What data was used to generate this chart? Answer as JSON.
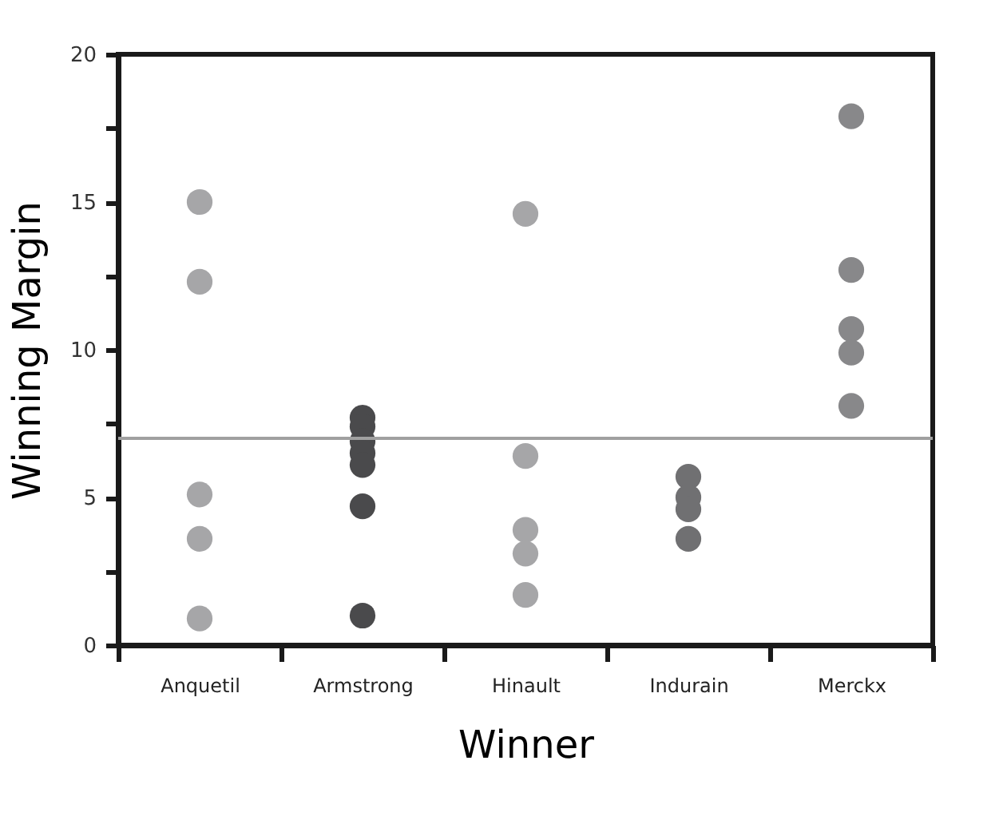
{
  "chart_data": {
    "type": "scatter",
    "xlabel": "Winner",
    "ylabel": "Winning Margin",
    "categories": [
      "Anquetil",
      "Armstrong",
      "Hinault",
      "Indurain",
      "Merckx"
    ],
    "series": [
      {
        "color": "#a6a6a8",
        "x": [
          "Anquetil",
          "Anquetil",
          "Anquetil",
          "Anquetil",
          "Anquetil"
        ],
        "values": [
          15.0,
          12.3,
          5.1,
          3.6,
          0.9
        ]
      },
      {
        "color": "#4a4a4c",
        "x": [
          "Armstrong",
          "Armstrong",
          "Armstrong",
          "Armstrong",
          "Armstrong",
          "Armstrong",
          "Armstrong"
        ],
        "values": [
          7.7,
          7.4,
          6.9,
          6.5,
          6.1,
          4.7,
          1.0
        ]
      },
      {
        "color": "#a6a6a8",
        "x": [
          "Hinault",
          "Hinault",
          "Hinault",
          "Hinault",
          "Hinault"
        ],
        "values": [
          14.6,
          6.4,
          3.9,
          3.1,
          1.7
        ]
      },
      {
        "color": "#707072",
        "x": [
          "Indurain",
          "Indurain",
          "Indurain",
          "Indurain"
        ],
        "values": [
          5.7,
          5.0,
          4.6,
          3.6
        ]
      },
      {
        "color": "#88888a",
        "x": [
          "Merckx",
          "Merckx",
          "Merckx",
          "Merckx",
          "Merckx"
        ],
        "values": [
          17.9,
          12.7,
          10.7,
          9.9,
          8.1
        ]
      }
    ],
    "ref_lines": [
      {
        "axis": "y",
        "value": 7.0,
        "color": "#a0a0a0"
      }
    ],
    "ylim": [
      0,
      20
    ],
    "yticks": [
      0,
      {
        "value": 2.5,
        "label": null
      },
      5,
      {
        "value": 7.5,
        "label": null
      },
      10,
      {
        "value": 12.5,
        "label": null
      },
      15,
      {
        "value": 17.5,
        "label": null
      },
      20
    ],
    "marker": "circle",
    "grid": false
  }
}
